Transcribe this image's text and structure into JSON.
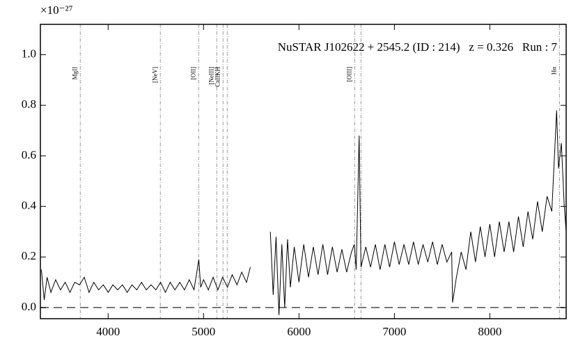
{
  "chart_data": {
    "type": "line",
    "title": "NuSTAR J102622 + 2545.2 (ID : 214)   z = 0.326   Run : 7",
    "y_multiplier": "×10⁻²⁷",
    "color": "#000000",
    "xlim": [
      3290,
      8800
    ],
    "ylim": [
      -0.044,
      1.12
    ],
    "xticks": [
      4000,
      5000,
      6000,
      7000,
      8000
    ],
    "yticks": [
      {
        "value": 0,
        "label": "0.0"
      },
      0.2,
      0.4,
      0.6,
      0.8,
      {
        "value": 1,
        "label": "1.0"
      }
    ],
    "zero_line": 0,
    "lines": [
      {
        "label": "MgII",
        "x": [
          3708
        ]
      },
      {
        "label": "[NeV]",
        "x": [
          4547
        ]
      },
      {
        "label": "[OII]",
        "x": [
          4949
        ]
      },
      {
        "label": "[NeIII]",
        "x": [
          5139
        ]
      },
      {
        "label": "CaIIKH",
        "x": [
          5204,
          5248
        ]
      },
      {
        "label": "[OIII]",
        "x": [
          6584,
          6650
        ]
      },
      {
        "label": "Hα",
        "x": [
          8730
        ]
      }
    ],
    "x": [
      3300,
      3330,
      3360,
      3400,
      3450,
      3500,
      3550,
      3600,
      3650,
      3700,
      3750,
      3800,
      3850,
      3900,
      3950,
      4000,
      4050,
      4100,
      4150,
      4200,
      4250,
      4300,
      4350,
      4400,
      4450,
      4500,
      4550,
      4600,
      4650,
      4700,
      4750,
      4800,
      4850,
      4900,
      4950,
      4970,
      5000,
      5050,
      5100,
      5150,
      5200,
      5250,
      5300,
      5350,
      5400,
      5450,
      5490,
      5500,
      5700,
      5730,
      5760,
      5790,
      5820,
      5850,
      5880,
      5910,
      5950,
      6000,
      6050,
      6100,
      6150,
      6200,
      6250,
      6300,
      6350,
      6400,
      6450,
      6500,
      6550,
      6580,
      6600,
      6630,
      6650,
      6700,
      6750,
      6800,
      6850,
      6900,
      6950,
      7000,
      7050,
      7100,
      7150,
      7200,
      7250,
      7300,
      7350,
      7400,
      7450,
      7500,
      7550,
      7600,
      7610,
      7650,
      7700,
      7750,
      7800,
      7850,
      7900,
      7950,
      8000,
      8050,
      8100,
      8150,
      8200,
      8250,
      8300,
      8350,
      8400,
      8450,
      8500,
      8550,
      8600,
      8650,
      8700,
      8720,
      8750,
      8780,
      8800
    ],
    "values": [
      0.15,
      0.03,
      0.12,
      0.06,
      0.11,
      0.07,
      0.1,
      0.06,
      0.1,
      0.09,
      0.12,
      0.06,
      0.1,
      0.07,
      0.09,
      0.06,
      0.09,
      0.07,
      0.09,
      0.06,
      0.09,
      0.07,
      0.1,
      0.07,
      0.09,
      0.07,
      0.1,
      0.06,
      0.1,
      0.07,
      0.1,
      0.07,
      0.11,
      0.07,
      0.19,
      0.08,
      0.11,
      0.07,
      0.12,
      0.07,
      0.12,
      0.08,
      0.13,
      0.09,
      0.14,
      0.1,
      0.16,
      null,
      0.3,
      0.05,
      0.28,
      -0.03,
      0.25,
      0.0,
      0.27,
      0.08,
      0.24,
      0.1,
      0.25,
      0.12,
      0.24,
      0.13,
      0.25,
      0.13,
      0.24,
      0.14,
      0.23,
      0.14,
      0.22,
      0.25,
      0.15,
      0.68,
      0.16,
      0.24,
      0.16,
      0.25,
      0.15,
      0.25,
      0.16,
      0.26,
      0.17,
      0.25,
      0.17,
      0.26,
      0.17,
      0.25,
      0.18,
      0.26,
      0.17,
      0.25,
      0.18,
      0.22,
      0.02,
      0.12,
      0.22,
      0.15,
      0.3,
      0.18,
      0.32,
      0.2,
      0.33,
      0.2,
      0.34,
      0.22,
      0.34,
      0.22,
      0.36,
      0.24,
      0.38,
      0.27,
      0.42,
      0.3,
      0.44,
      0.38,
      0.78,
      0.55,
      0.65,
      0.4,
      0.3
    ]
  }
}
